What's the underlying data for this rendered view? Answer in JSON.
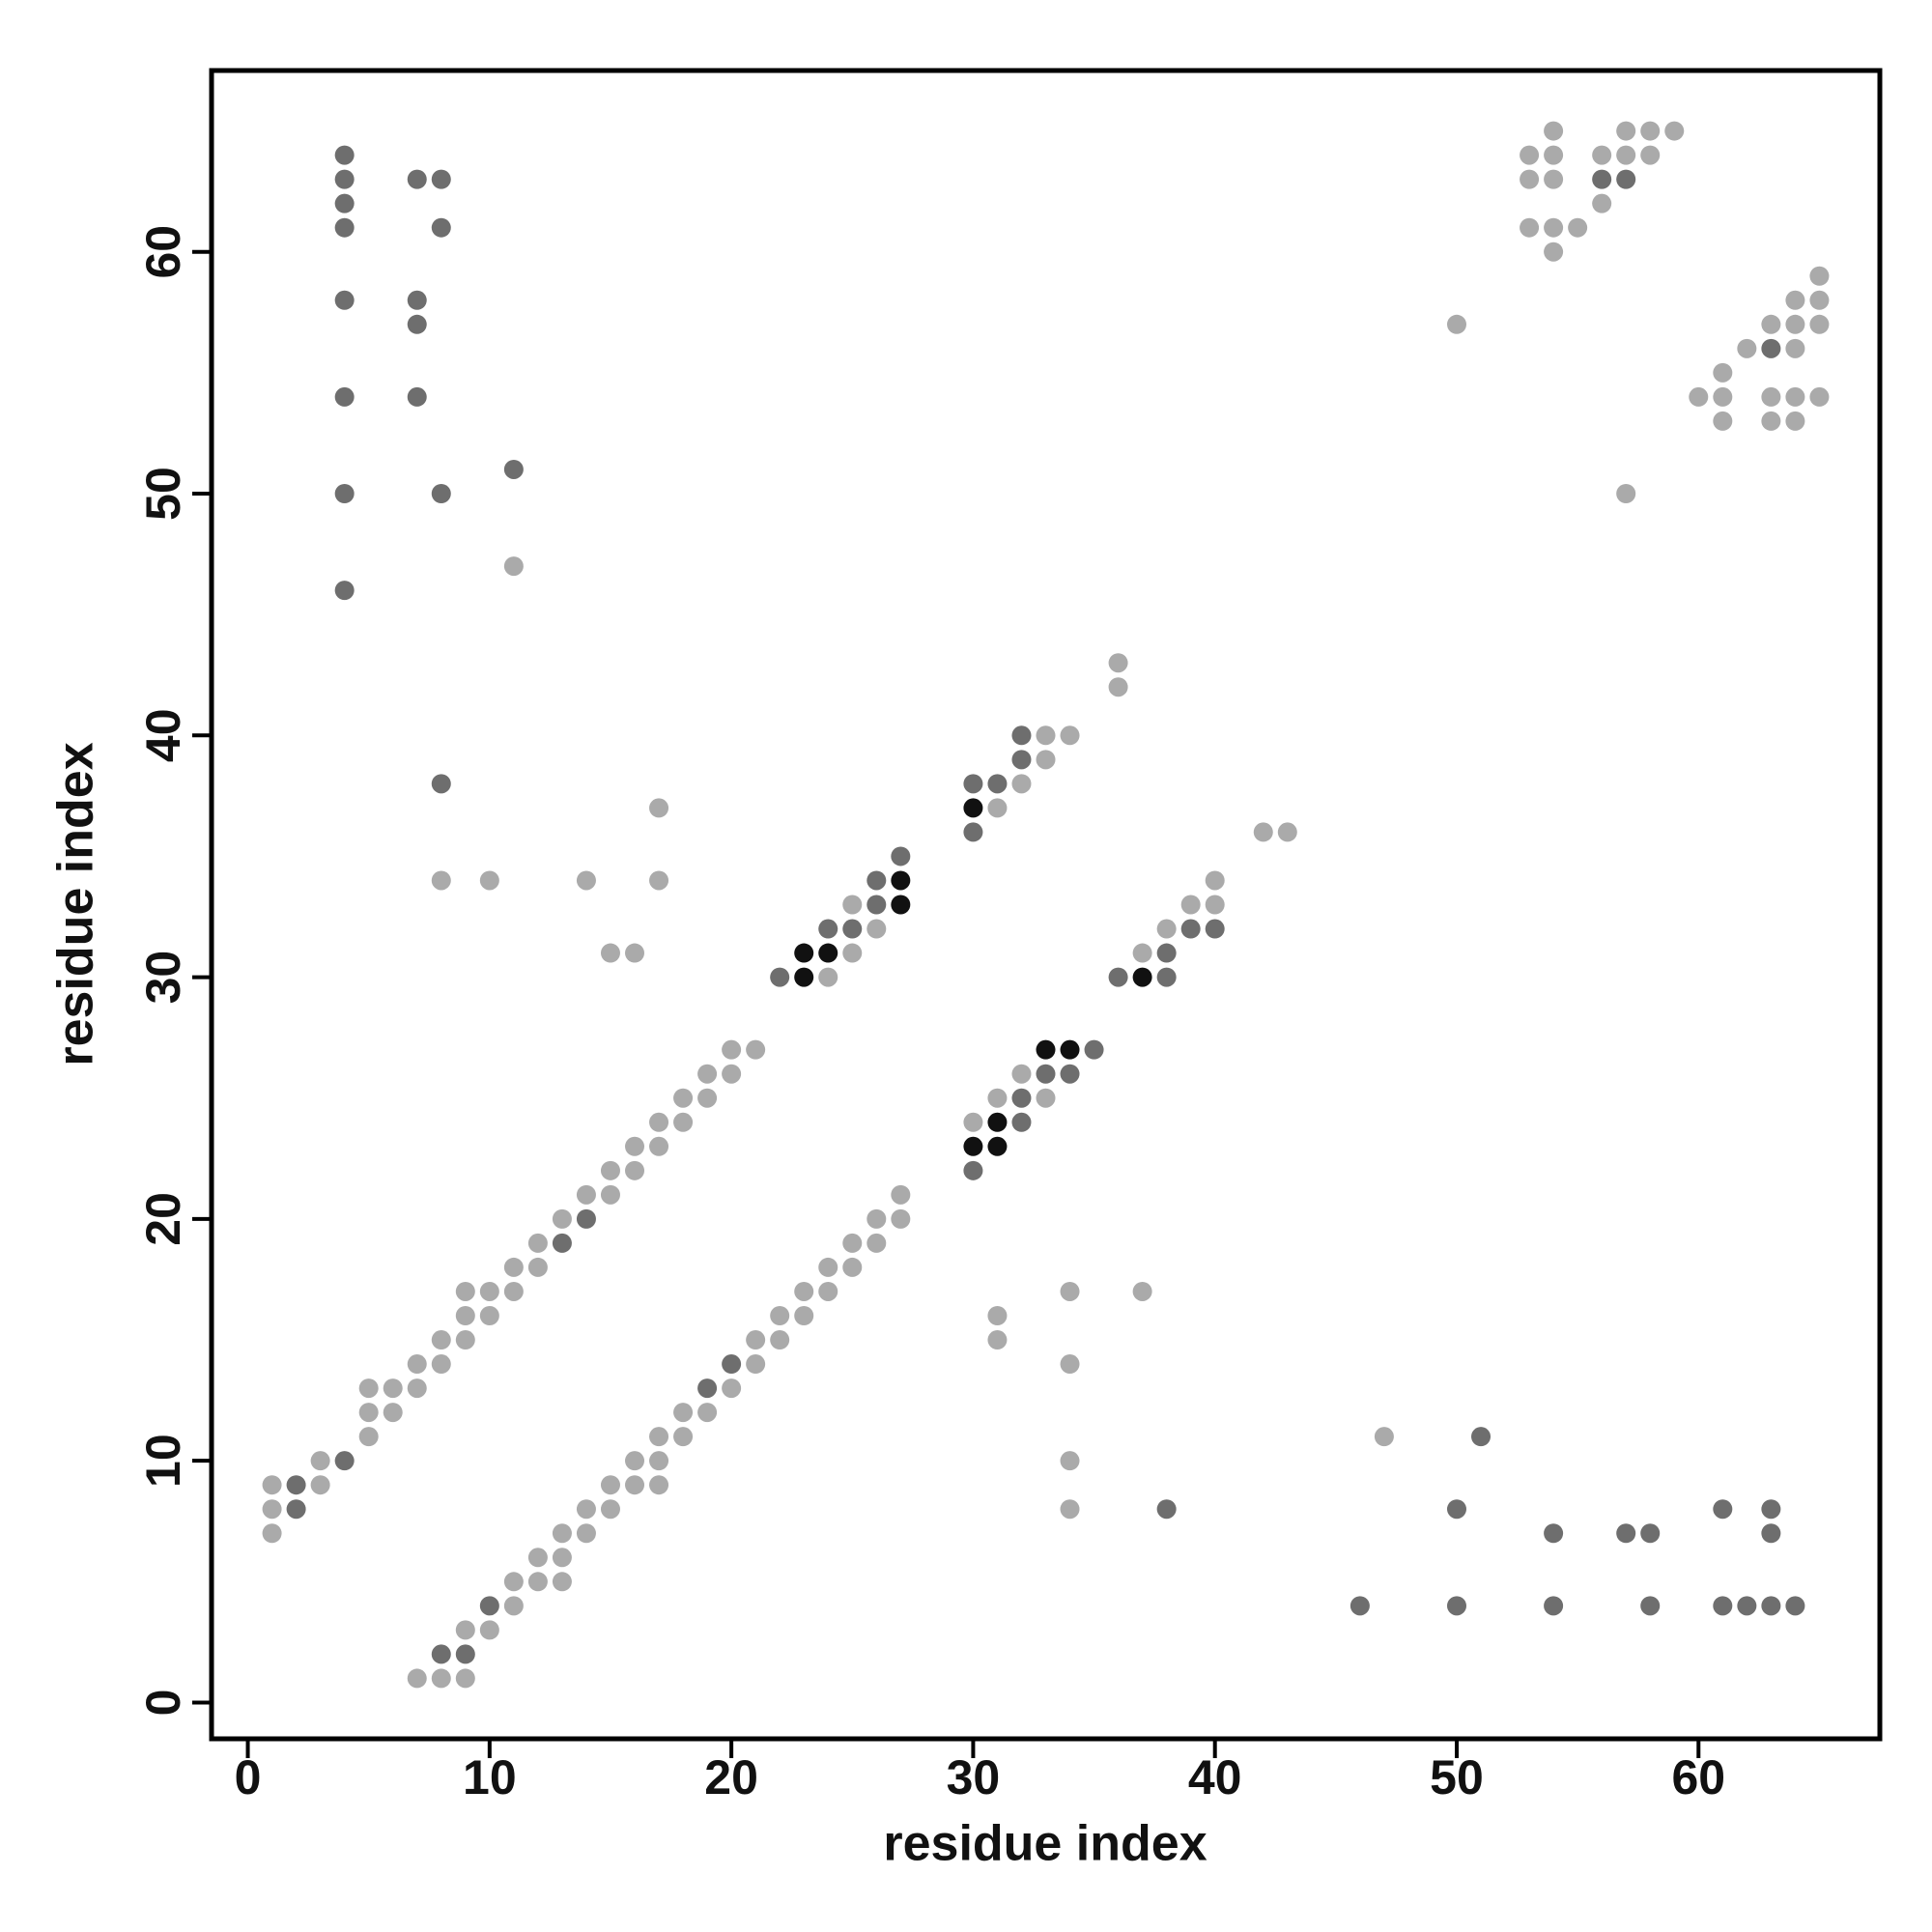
{
  "chart_data": {
    "type": "scatter",
    "xlabel": "residue index",
    "ylabel": "residue index",
    "xlim": [
      -1.5,
      67.5
    ],
    "ylim": [
      -1.5,
      67.5
    ],
    "xticks": [
      0,
      10,
      20,
      30,
      40,
      50,
      60
    ],
    "yticks": [
      0,
      10,
      20,
      30,
      40,
      50,
      60
    ],
    "series": [
      {
        "color": "#aaaaaa",
        "x": [
          1,
          1,
          1,
          3,
          3,
          5,
          5,
          5,
          6,
          6,
          7,
          7,
          8,
          8,
          9,
          9,
          9,
          10,
          10,
          11,
          11,
          12,
          12,
          13,
          14,
          15,
          15,
          16,
          16,
          17,
          17,
          18,
          18,
          19,
          19,
          20,
          20,
          21,
          24,
          25,
          25,
          26,
          31,
          32,
          33,
          33,
          34,
          36,
          36,
          7,
          8,
          9,
          9,
          10,
          11,
          11,
          12,
          12,
          13,
          13,
          13,
          14,
          14,
          15,
          15,
          16,
          16,
          17,
          17,
          17,
          18,
          18,
          19,
          20,
          21,
          21,
          22,
          22,
          23,
          23,
          24,
          24,
          25,
          25,
          26,
          26,
          27,
          27,
          30,
          31,
          32,
          33,
          37,
          38,
          39,
          40,
          40,
          42,
          43,
          8,
          10,
          14,
          15,
          16,
          17,
          17,
          11,
          31,
          31,
          34,
          34,
          34,
          34,
          37,
          47,
          50,
          57,
          53,
          53,
          53,
          54,
          54,
          54,
          54,
          54,
          55,
          56,
          56,
          57,
          57,
          58,
          58,
          59,
          60,
          61,
          61,
          61,
          62,
          63,
          63,
          63,
          64,
          64,
          64,
          64,
          64,
          65,
          65,
          65,
          65
        ],
        "y": [
          9,
          8,
          7,
          10,
          9,
          11,
          13,
          12,
          13,
          12,
          14,
          13,
          15,
          14,
          17,
          16,
          15,
          17,
          16,
          18,
          17,
          19,
          18,
          20,
          21,
          22,
          21,
          23,
          22,
          24,
          23,
          25,
          24,
          26,
          25,
          27,
          26,
          27,
          30,
          33,
          31,
          32,
          37,
          38,
          40,
          39,
          40,
          43,
          42,
          1,
          1,
          3,
          1,
          3,
          5,
          4,
          6,
          5,
          7,
          6,
          5,
          8,
          7,
          9,
          8,
          10,
          9,
          11,
          10,
          9,
          12,
          11,
          12,
          13,
          15,
          14,
          16,
          15,
          17,
          16,
          18,
          17,
          19,
          18,
          20,
          19,
          21,
          20,
          24,
          25,
          26,
          25,
          31,
          32,
          33,
          34,
          33,
          36,
          36,
          34,
          34,
          34,
          31,
          31,
          37,
          34,
          47,
          16,
          15,
          17,
          14,
          10,
          8,
          17,
          11,
          57,
          50,
          64,
          63,
          61,
          65,
          64,
          63,
          61,
          60,
          61,
          64,
          62,
          65,
          64,
          65,
          64,
          65,
          54,
          55,
          54,
          53,
          56,
          57,
          54,
          53,
          58,
          57,
          56,
          54,
          53,
          59,
          58,
          57,
          54
        ]
      },
      {
        "color": "#6e6e6e",
        "x": [
          4,
          4,
          4,
          4,
          4,
          4,
          4,
          4,
          7,
          8,
          8,
          7,
          7,
          7,
          8,
          11,
          8,
          2,
          2,
          4,
          13,
          14,
          22,
          24,
          25,
          26,
          26,
          27,
          30,
          31,
          30,
          32,
          32,
          8,
          9,
          10,
          19,
          20,
          30,
          32,
          32,
          33,
          34,
          35,
          36,
          38,
          38,
          39,
          40,
          38,
          46,
          50,
          50,
          51,
          54,
          54,
          57,
          58,
          58,
          61,
          61,
          62,
          63,
          63,
          63,
          64,
          56,
          63,
          57
        ],
        "y": [
          64,
          63,
          62,
          61,
          58,
          54,
          50,
          46,
          63,
          63,
          61,
          58,
          57,
          54,
          50,
          51,
          38,
          9,
          8,
          10,
          19,
          20,
          30,
          32,
          32,
          34,
          33,
          35,
          38,
          38,
          36,
          40,
          39,
          2,
          2,
          4,
          13,
          14,
          22,
          25,
          24,
          26,
          26,
          27,
          30,
          31,
          30,
          32,
          32,
          8,
          4,
          8,
          4,
          11,
          7,
          4,
          7,
          7,
          4,
          8,
          4,
          4,
          8,
          7,
          4,
          4,
          63,
          56,
          63
        ]
      },
      {
        "color": "#111111",
        "x": [
          23,
          23,
          24,
          27,
          27,
          30,
          31,
          31,
          30,
          33,
          34,
          37
        ],
        "y": [
          31,
          30,
          31,
          34,
          33,
          37,
          24,
          23,
          23,
          27,
          27,
          30
        ]
      }
    ]
  }
}
